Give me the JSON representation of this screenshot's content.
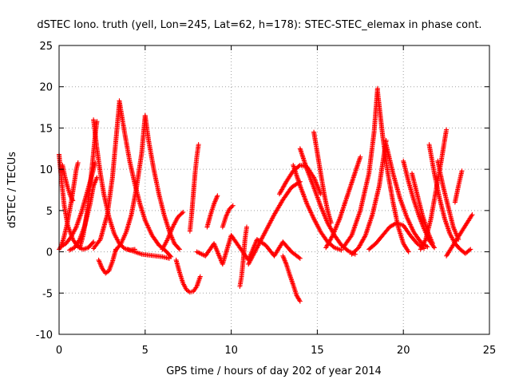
{
  "chart_data": {
    "type": "scatter",
    "title": "dSTEC Iono. truth (yell, Lon=245, Lat=62, h=178): STEC-STEC_elemax in phase cont.",
    "xlabel": "GPS time / hours of day 202 of year 2014",
    "ylabel": "dSTEC  / TECUs",
    "xlim": [
      0,
      25
    ],
    "ylim": [
      -10,
      25
    ],
    "x_ticks": [
      "0",
      "5",
      "10",
      "15",
      "20",
      "25"
    ],
    "y_ticks": [
      "-10",
      "-5",
      "0",
      "5",
      "10",
      "15",
      "20",
      "25"
    ],
    "grid": true,
    "legend": "none",
    "marker": "plus",
    "color": "#ff0000",
    "series": [
      {
        "x": [
          0.0,
          0.15,
          0.3,
          0.5,
          0.8,
          1.1,
          1.4,
          1.7,
          2.0
        ],
        "y": [
          11.8,
          8.5,
          5.6,
          3.2,
          1.5,
          0.6,
          0.3,
          0.5,
          1.2
        ]
      },
      {
        "x": [
          0.0,
          0.1,
          0.25,
          0.45,
          0.7,
          0.9,
          1.0,
          1.1
        ],
        "y": [
          0.3,
          0.6,
          1.5,
          3.2,
          6.0,
          8.6,
          10.0,
          10.8
        ]
      },
      {
        "x": [
          0.2,
          0.35,
          0.5,
          0.65,
          0.8
        ],
        "y": [
          10.5,
          9.0,
          7.8,
          6.8,
          6.2
        ]
      },
      {
        "x": [
          0.1,
          0.4,
          0.7,
          1.0,
          1.3,
          1.6,
          1.9,
          2.1
        ],
        "y": [
          0.6,
          1.0,
          1.8,
          3.0,
          4.8,
          7.0,
          9.2,
          10.8
        ]
      },
      {
        "x": [
          0.6,
          0.9,
          1.2,
          1.5,
          1.8,
          2.0,
          2.2
        ],
        "y": [
          0.2,
          0.5,
          1.5,
          3.2,
          5.8,
          8.0,
          9.0
        ]
      },
      {
        "x": [
          1.2,
          1.4,
          1.6,
          1.8,
          2.0,
          2.1,
          2.2
        ],
        "y": [
          0.5,
          2.0,
          4.5,
          8.0,
          12.0,
          14.2,
          15.8
        ]
      },
      {
        "x": [
          2.0,
          2.2,
          2.4,
          2.6,
          2.9,
          3.2,
          3.5,
          3.8,
          4.1,
          4.4
        ],
        "y": [
          16.0,
          12.5,
          9.5,
          7.0,
          4.2,
          2.2,
          1.0,
          0.4,
          0.2,
          0.3
        ]
      },
      {
        "x": [
          2.3,
          2.5,
          2.7,
          2.9,
          3.1,
          3.3
        ],
        "y": [
          -1.0,
          -2.0,
          -2.6,
          -2.3,
          -1.2,
          0.3
        ]
      },
      {
        "x": [
          2.0,
          2.4,
          2.8,
          3.1,
          3.3,
          3.5
        ],
        "y": [
          0.4,
          1.5,
          4.5,
          9.0,
          13.5,
          18.0
        ]
      },
      {
        "x": [
          3.5,
          3.8,
          4.1,
          4.4,
          4.7,
          5.0,
          5.4,
          5.8,
          6.2,
          6.5
        ],
        "y": [
          18.3,
          14.5,
          11.0,
          8.2,
          5.8,
          3.8,
          2.0,
          0.8,
          0.1,
          -0.6
        ]
      },
      {
        "x": [
          3.3,
          3.6,
          3.9,
          4.2,
          4.5,
          4.8,
          5.0
        ],
        "y": [
          0.2,
          1.0,
          2.4,
          4.5,
          7.8,
          12.0,
          16.5
        ]
      },
      {
        "x": [
          5.0,
          5.2,
          5.5,
          5.8,
          6.1,
          6.4,
          6.7,
          7.0
        ],
        "y": [
          16.5,
          13.5,
          10.0,
          7.0,
          4.5,
          2.5,
          1.0,
          0.3
        ]
      },
      {
        "x": [
          4.0,
          4.4,
          4.8,
          5.2,
          5.6,
          6.0,
          6.4
        ],
        "y": [
          0.3,
          0.0,
          -0.3,
          -0.4,
          -0.5,
          -0.6,
          -0.8
        ]
      },
      {
        "x": [
          6.0,
          6.3,
          6.6,
          6.9,
          7.2
        ],
        "y": [
          0.3,
          1.5,
          3.0,
          4.2,
          4.8
        ]
      },
      {
        "x": [
          6.8,
          7.0,
          7.2,
          7.4,
          7.6,
          7.8,
          8.0,
          8.2
        ],
        "y": [
          -1.0,
          -2.5,
          -3.8,
          -4.6,
          -4.9,
          -4.8,
          -4.2,
          -3.0
        ]
      },
      {
        "x": [
          7.6,
          7.7,
          7.8,
          7.9,
          8.0,
          8.1
        ],
        "y": [
          2.5,
          4.5,
          7.0,
          9.5,
          11.5,
          13.0
        ]
      },
      {
        "x": [
          8.0,
          8.5,
          9.0,
          9.5,
          10.0,
          10.5,
          11.0,
          11.5,
          12.0,
          12.5,
          13.0,
          13.5,
          14.0
        ],
        "y": [
          0.0,
          -0.5,
          1.0,
          -1.5,
          2.0,
          0.5,
          -1.0,
          1.5,
          0.8,
          -0.5,
          1.2,
          0.0,
          -0.8
        ]
      },
      {
        "x": [
          8.6,
          8.8,
          9.0,
          9.2
        ],
        "y": [
          3.0,
          4.5,
          5.8,
          6.8
        ]
      },
      {
        "x": [
          9.5,
          9.7,
          9.9,
          10.1
        ],
        "y": [
          3.0,
          4.3,
          5.2,
          5.6
        ]
      },
      {
        "x": [
          10.5,
          10.6,
          10.7,
          10.8,
          10.9
        ],
        "y": [
          -4.2,
          -3.0,
          -1.0,
          1.5,
          3.0
        ]
      },
      {
        "x": [
          11.0,
          11.5,
          12.0,
          12.5,
          13.0,
          13.5,
          14.0
        ],
        "y": [
          -1.5,
          0.5,
          2.5,
          4.5,
          6.3,
          7.8,
          8.5
        ]
      },
      {
        "x": [
          13.0,
          13.2,
          13.4,
          13.6,
          13.8,
          14.0
        ],
        "y": [
          -0.5,
          -1.5,
          -2.8,
          -4.0,
          -5.3,
          -6.0
        ]
      },
      {
        "x": [
          12.8,
          13.2,
          13.6,
          14.0,
          14.4,
          14.8,
          15.2
        ],
        "y": [
          7.0,
          8.5,
          9.8,
          10.5,
          10.3,
          9.0,
          7.0
        ]
      },
      {
        "x": [
          13.6,
          14.0,
          14.4,
          14.8,
          15.2,
          15.6,
          16.0,
          16.4
        ],
        "y": [
          10.5,
          8.0,
          5.8,
          4.0,
          2.4,
          1.2,
          0.5,
          0.2
        ]
      },
      {
        "x": [
          14.0,
          14.4,
          14.8,
          15.2,
          15.6,
          16.0,
          16.4,
          16.8,
          17.2
        ],
        "y": [
          12.5,
          10.0,
          7.8,
          5.5,
          3.5,
          2.0,
          0.8,
          0.1,
          -0.3
        ]
      },
      {
        "x": [
          14.8,
          15.0,
          15.2,
          15.4,
          15.6,
          15.8
        ],
        "y": [
          14.5,
          12.0,
          9.5,
          7.0,
          5.0,
          3.5
        ]
      },
      {
        "x": [
          15.5,
          15.9,
          16.3,
          16.7,
          17.1,
          17.5
        ],
        "y": [
          0.5,
          2.0,
          4.0,
          6.5,
          9.0,
          11.5
        ]
      },
      {
        "x": [
          16.5,
          17.0,
          17.5,
          18.0,
          18.3,
          18.5
        ],
        "y": [
          0.5,
          2.0,
          5.0,
          9.5,
          14.5,
          19.8
        ]
      },
      {
        "x": [
          18.5,
          18.8,
          19.1,
          19.4,
          19.7,
          20.0,
          20.3
        ],
        "y": [
          19.5,
          14.0,
          9.5,
          6.0,
          3.0,
          1.0,
          0.0
        ]
      },
      {
        "x": [
          17.0,
          17.4,
          17.8,
          18.2,
          18.6,
          19.0
        ],
        "y": [
          -0.3,
          0.5,
          2.0,
          4.5,
          8.0,
          13.5
        ]
      },
      {
        "x": [
          18.0,
          18.4,
          18.8,
          19.2,
          19.6,
          20.0,
          20.4,
          20.8,
          21.2
        ],
        "y": [
          0.3,
          1.0,
          2.0,
          3.0,
          3.5,
          3.2,
          2.0,
          1.0,
          0.4
        ]
      },
      {
        "x": [
          19.0,
          19.4,
          19.8,
          20.2,
          20.6,
          21.0,
          21.4
        ],
        "y": [
          13.0,
          9.5,
          6.5,
          4.2,
          2.4,
          1.2,
          0.6
        ]
      },
      {
        "x": [
          20.0,
          20.3,
          20.6,
          20.9,
          21.2,
          21.5,
          21.8
        ],
        "y": [
          11.0,
          8.5,
          6.3,
          4.4,
          2.8,
          1.4,
          0.5
        ]
      },
      {
        "x": [
          20.5,
          20.8,
          21.1,
          21.4,
          21.7
        ],
        "y": [
          9.5,
          7.0,
          4.5,
          2.5,
          1.0
        ]
      },
      {
        "x": [
          21.0,
          21.3,
          21.6,
          21.9,
          22.2,
          22.5
        ],
        "y": [
          0.3,
          1.5,
          4.0,
          7.5,
          11.0,
          14.8
        ]
      },
      {
        "x": [
          21.5,
          21.8,
          22.1,
          22.4,
          22.7,
          23.0,
          23.3,
          23.6,
          23.9
        ],
        "y": [
          13.0,
          9.5,
          6.5,
          4.0,
          2.2,
          1.0,
          0.3,
          -0.2,
          0.3
        ]
      },
      {
        "x": [
          22.0,
          22.3,
          22.6,
          22.9,
          23.2
        ],
        "y": [
          11.0,
          8.0,
          5.5,
          3.0,
          1.5
        ]
      },
      {
        "x": [
          22.5,
          22.8,
          23.1,
          23.4,
          23.7,
          24.0
        ],
        "y": [
          -0.5,
          0.5,
          1.5,
          2.5,
          3.5,
          4.5
        ]
      },
      {
        "x": [
          23.0,
          23.2,
          23.4
        ],
        "y": [
          6.0,
          8.0,
          9.8
        ]
      }
    ]
  }
}
